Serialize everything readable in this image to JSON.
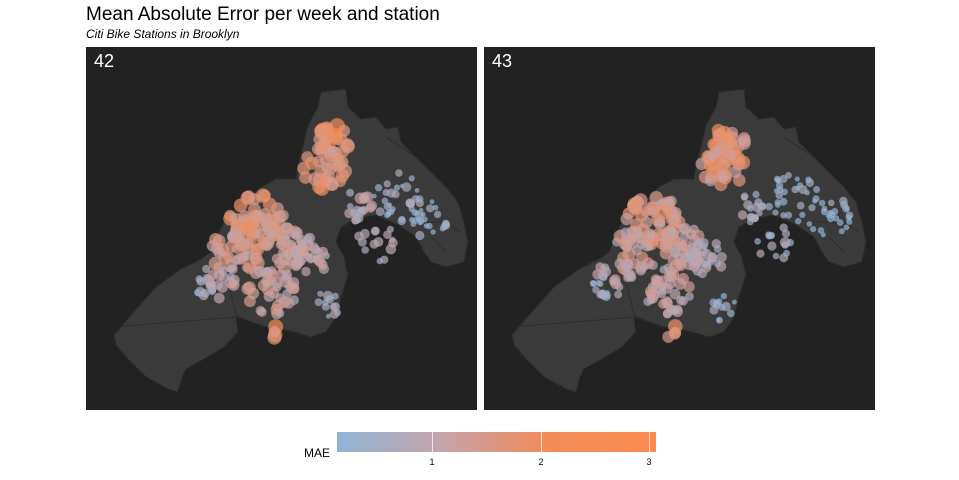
{
  "title": "Mean Absolute Error per week and station",
  "subtitle": "Citi Bike Stations in Brooklyn",
  "panels": [
    {
      "label": "42"
    },
    {
      "label": "43"
    }
  ],
  "legend": {
    "title": "MAE",
    "ticks": [
      "1",
      "2",
      "3"
    ],
    "tick_values": [
      1,
      2,
      3
    ],
    "range": [
      0.05,
      3.05
    ],
    "colors": {
      "low": "#8fb4d6",
      "mid": "#c6a3a8",
      "high": "#fa8a4e"
    }
  },
  "colors": {
    "panel_bg": "#222222",
    "land": "#3a3a3a",
    "land_border": "#2b2b2b"
  }
}
